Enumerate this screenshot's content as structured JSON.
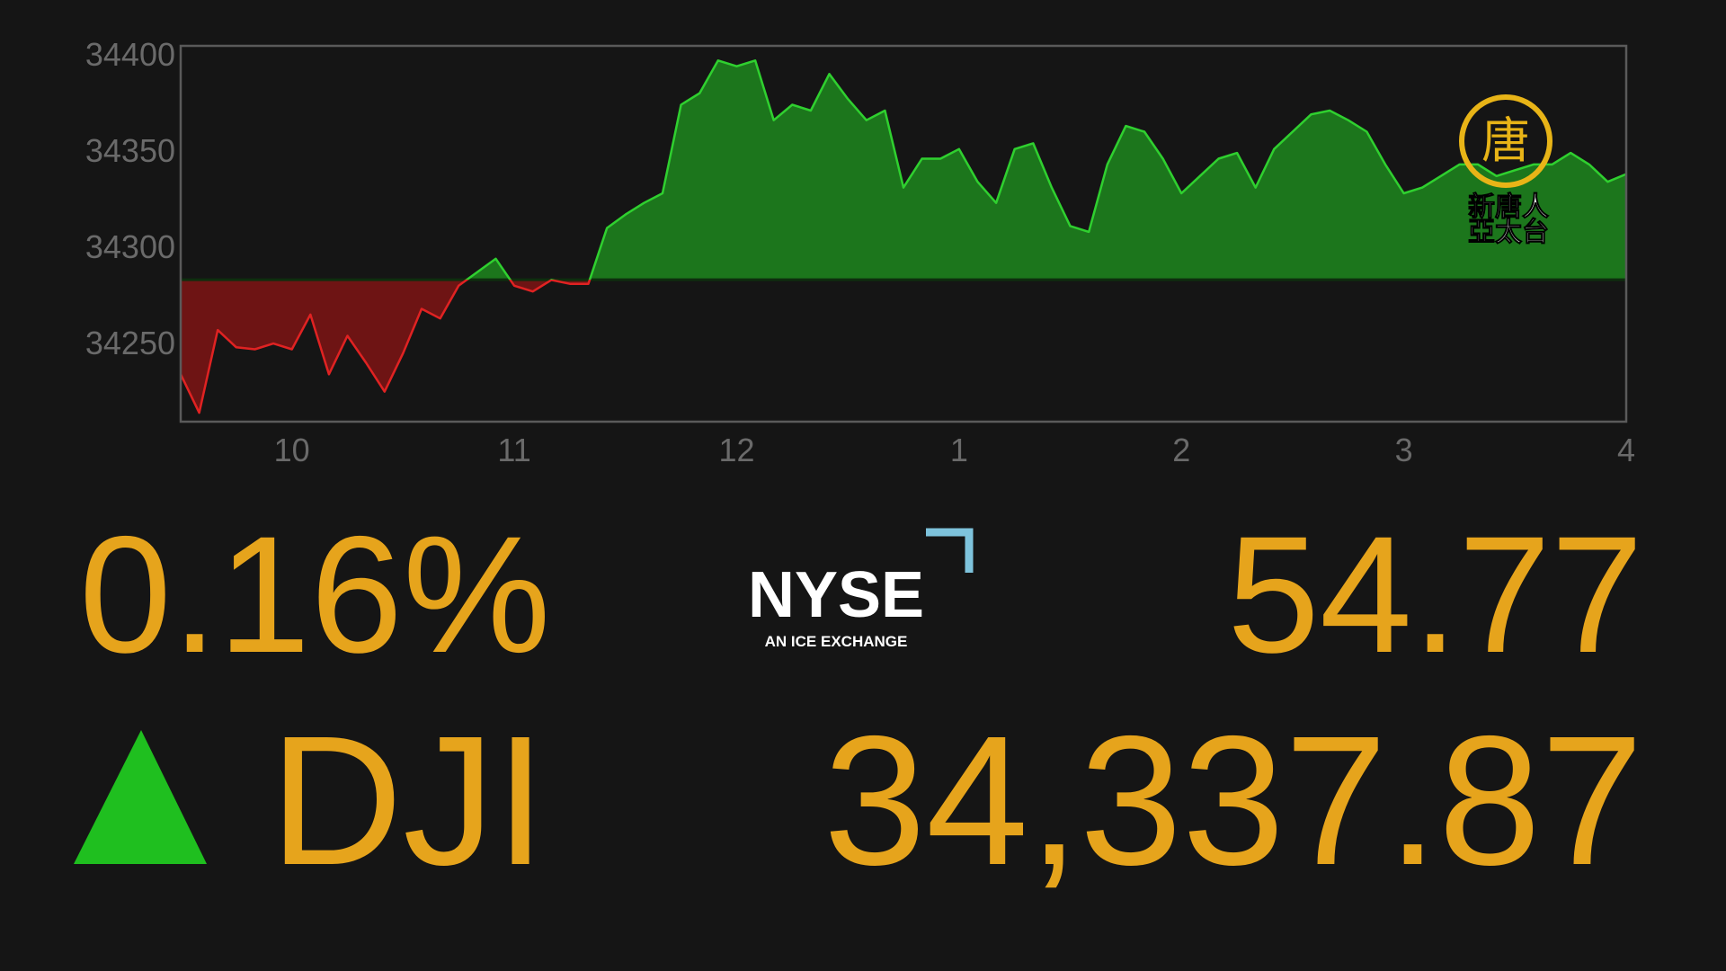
{
  "chart_data": {
    "type": "area",
    "x": [
      570,
      575,
      580,
      585,
      590,
      595,
      600,
      605,
      610,
      615,
      620,
      625,
      630,
      635,
      640,
      645,
      650,
      655,
      660,
      665,
      670,
      675,
      680,
      685,
      690,
      695,
      700,
      705,
      710,
      715,
      720,
      725,
      730,
      735,
      740,
      745,
      750,
      755,
      760,
      765,
      770,
      775,
      780,
      785,
      790,
      795,
      800,
      805,
      810,
      815,
      820,
      825,
      830,
      835,
      840,
      845,
      850,
      855,
      860,
      865,
      870,
      875,
      880,
      885,
      890,
      895,
      900,
      905,
      910,
      915,
      920,
      925,
      930,
      935,
      940,
      945,
      950,
      955,
      960
    ],
    "values": [
      34234,
      34214,
      34257,
      34248,
      34247,
      34250,
      34247,
      34265,
      34234,
      34254,
      34240,
      34225,
      34245,
      34268,
      34263,
      34280,
      34287,
      34294,
      34280,
      34277,
      34283,
      34281,
      34281,
      34310,
      34317,
      34323,
      34328,
      34374,
      34380,
      34397,
      34394,
      34397,
      34366,
      34374,
      34371,
      34390,
      34377,
      34366,
      34371,
      34331,
      34346,
      34346,
      34351,
      34334,
      34323,
      34351,
      34354,
      34331,
      34311,
      34308,
      34343,
      34363,
      34360,
      34346,
      34328,
      34337,
      34346,
      34349,
      34331,
      34351,
      34360,
      34369,
      34371,
      34366,
      34360,
      34343,
      34328,
      34331,
      34337,
      34343,
      34343,
      34337,
      34340,
      34343,
      34343,
      34349,
      34343,
      34334,
      34338
    ],
    "xlim": [
      570,
      960
    ],
    "xticks": [
      {
        "value": 600,
        "label": "10"
      },
      {
        "value": 660,
        "label": "11"
      },
      {
        "value": 720,
        "label": "12"
      },
      {
        "value": 780,
        "label": "1"
      },
      {
        "value": 840,
        "label": "2"
      },
      {
        "value": 900,
        "label": "3"
      },
      {
        "value": 960,
        "label": "4"
      }
    ],
    "ylim": [
      34209.4,
      34404.6
    ],
    "yticks": [
      34250,
      34300,
      34350,
      34400
    ],
    "baseline": 34283.1,
    "color_up": "#2fd02f",
    "color_down": "#e02222",
    "fill_up": "#1c761c",
    "fill_down": "#6e1414"
  },
  "ticker": {
    "change_percent": "0.16%",
    "change": "54.77",
    "symbol": "DJI",
    "price": "34,337.87"
  },
  "exchange_logo": {
    "name": "NYSE",
    "tagline": "AN ICE EXCHANGE"
  },
  "channel_logo": {
    "emblem": "唐",
    "line1": "新唐人",
    "line2": "亞太台"
  }
}
